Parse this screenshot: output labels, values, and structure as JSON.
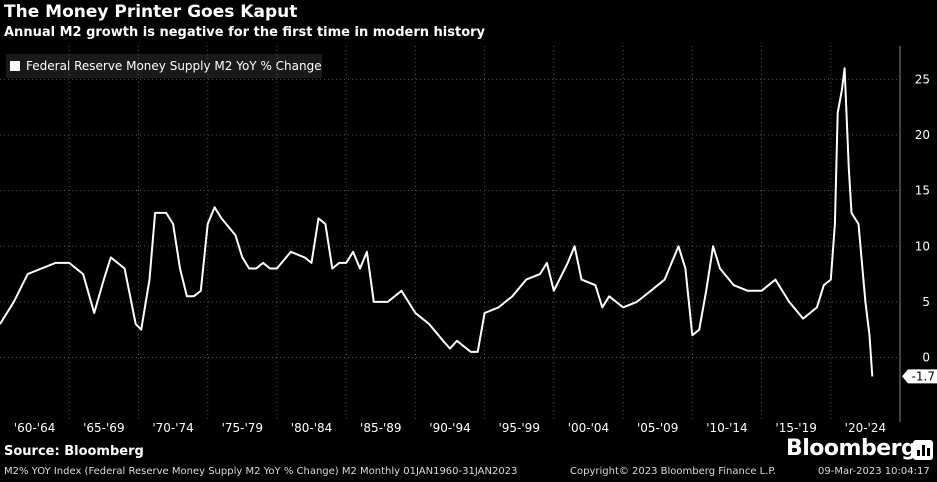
{
  "title": "The Money Printer Goes Kaput",
  "subtitle": "Annual M2 growth is negative for the first time in modern history",
  "source": "Source: Bloomberg",
  "brand": "Bloomberg",
  "footer": {
    "left": "M2% YOY Index (Federal Reserve Money Supply M2 YoY % Change) M2  Monthly 01JAN1960-31JAN2023",
    "center": "Copyright© 2023 Bloomberg Finance L.P.",
    "right": "09-Mar-2023 10:04:17"
  },
  "colors": {
    "background": "#000000",
    "line": "#ffffff",
    "grid": "#555555"
  },
  "chart_data": {
    "type": "line",
    "series": [
      {
        "name": "Federal Reserve Money Supply M2 YoY % Change",
        "x": [
          1960.0,
          1961.0,
          1962.0,
          1963.0,
          1964.0,
          1965.0,
          1966.0,
          1966.8,
          1967.5,
          1968.0,
          1969.0,
          1969.8,
          1970.2,
          1970.8,
          1971.2,
          1972.0,
          1972.5,
          1973.0,
          1973.5,
          1974.0,
          1974.5,
          1975.0,
          1975.5,
          1976.0,
          1977.0,
          1977.5,
          1978.0,
          1978.5,
          1979.0,
          1979.5,
          1980.0,
          1981.0,
          1982.0,
          1982.5,
          1983.0,
          1983.5,
          1984.0,
          1984.5,
          1985.0,
          1985.5,
          1986.0,
          1986.5,
          1987.0,
          1988.0,
          1989.0,
          1990.0,
          1991.0,
          1992.0,
          1992.5,
          1993.0,
          1994.0,
          1994.5,
          1995.0,
          1996.0,
          1997.0,
          1998.0,
          1999.0,
          1999.5,
          2000.0,
          2001.0,
          2001.5,
          2002.0,
          2003.0,
          2003.5,
          2004.0,
          2005.0,
          2006.0,
          2007.0,
          2008.0,
          2009.0,
          2009.5,
          2010.0,
          2010.5,
          2011.0,
          2011.5,
          2012.0,
          2013.0,
          2014.0,
          2015.0,
          2016.0,
          2017.0,
          2018.0,
          2019.0,
          2019.5,
          2020.0,
          2020.3,
          2020.5,
          2020.8,
          2021.0,
          2021.3,
          2021.5,
          2022.0,
          2022.5,
          2022.8,
          2023.0
        ],
        "y": [
          3.0,
          5.0,
          7.5,
          8.0,
          8.5,
          8.5,
          7.5,
          4.0,
          7.0,
          9.0,
          8.0,
          3.0,
          2.5,
          7.0,
          13.0,
          13.0,
          12.0,
          8.0,
          5.5,
          5.5,
          6.0,
          12.0,
          13.5,
          12.5,
          11.0,
          9.0,
          8.0,
          8.0,
          8.5,
          8.0,
          8.0,
          9.5,
          9.0,
          8.5,
          12.5,
          12.0,
          8.0,
          8.5,
          8.5,
          9.5,
          8.0,
          9.5,
          5.0,
          5.0,
          6.0,
          4.0,
          3.0,
          1.5,
          0.8,
          1.5,
          0.5,
          0.5,
          4.0,
          4.5,
          5.5,
          7.0,
          7.5,
          8.5,
          6.0,
          8.5,
          10.0,
          7.0,
          6.5,
          4.5,
          5.5,
          4.5,
          5.0,
          6.0,
          7.0,
          10.0,
          8.0,
          2.0,
          2.5,
          6.0,
          10.0,
          8.0,
          6.5,
          6.0,
          6.0,
          7.0,
          5.0,
          3.5,
          4.5,
          6.5,
          7.0,
          12.0,
          22.0,
          24.0,
          26.0,
          17.0,
          13.0,
          12.0,
          5.0,
          2.0,
          -1.7
        ]
      }
    ],
    "legend": [
      "Federal Reserve Money Supply M2 YoY % Change"
    ],
    "last_value_label": "-1.7",
    "x_tick_labels": [
      "'60-'64",
      "'65-'69",
      "'70-'74",
      "'75-'79",
      "'80-'84",
      "'85-'89",
      "'90-'94",
      "'95-'99",
      "'00-'04",
      "'05-'09",
      "'10-'14",
      "'15-'19",
      "'20-'24"
    ],
    "y_ticks": [
      0,
      5,
      10,
      15,
      20,
      25
    ],
    "xlim": [
      1960,
      2025
    ],
    "ylim": [
      -4,
      28
    ],
    "grid": true,
    "legend_position": "top-left"
  }
}
